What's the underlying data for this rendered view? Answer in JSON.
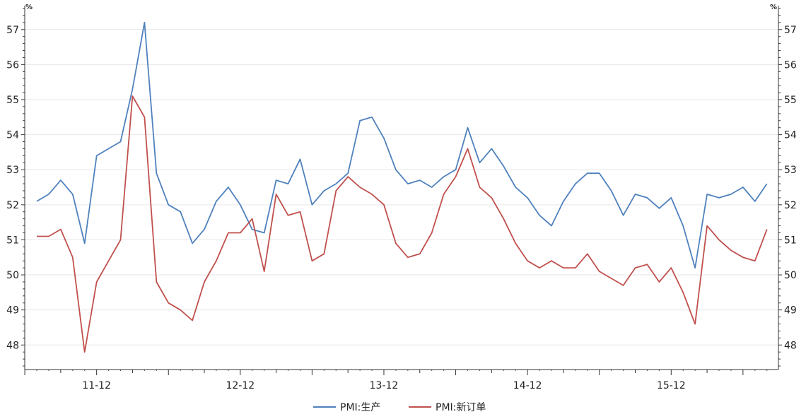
{
  "chart_data": {
    "type": "line",
    "y_unit_left": "%",
    "y_unit_right": "%",
    "ylim": [
      47.3,
      57.6
    ],
    "yticks": [
      48,
      49,
      50,
      51,
      52,
      53,
      54,
      55,
      56,
      57
    ],
    "x_labels": [
      "11-12",
      "12-12",
      "13-12",
      "14-12",
      "15-12"
    ],
    "x_label_indices": [
      5,
      17,
      29,
      41,
      53
    ],
    "grid": true,
    "legend_position": "bottom",
    "series": [
      {
        "name": "PMI:生产",
        "color": "#4f81bd",
        "values": [
          52.1,
          52.3,
          52.7,
          52.3,
          50.9,
          53.4,
          53.6,
          53.8,
          55.3,
          57.2,
          52.9,
          52.0,
          51.8,
          50.9,
          51.3,
          52.1,
          52.5,
          52.0,
          51.3,
          51.2,
          52.7,
          52.6,
          53.3,
          52.0,
          52.4,
          52.6,
          52.9,
          54.4,
          54.5,
          53.9,
          53.0,
          52.6,
          52.7,
          52.5,
          52.8,
          53.0,
          54.2,
          53.2,
          53.6,
          53.1,
          52.5,
          52.2,
          51.7,
          51.4,
          52.1,
          52.6,
          52.9,
          52.9,
          52.4,
          51.7,
          52.3,
          52.2,
          51.9,
          52.2,
          51.4,
          50.2,
          52.3,
          52.2,
          52.3,
          52.5,
          52.1,
          52.6
        ]
      },
      {
        "name": "PMI:新订单",
        "color": "#c0504d",
        "values": [
          51.1,
          51.1,
          51.3,
          50.5,
          47.8,
          49.8,
          50.4,
          51.0,
          55.1,
          54.5,
          49.8,
          49.2,
          49.0,
          48.7,
          49.8,
          50.4,
          51.2,
          51.2,
          51.6,
          50.1,
          52.3,
          51.7,
          51.8,
          50.4,
          50.6,
          52.4,
          52.8,
          52.5,
          52.3,
          52.0,
          50.9,
          50.5,
          50.6,
          51.2,
          52.3,
          52.8,
          53.6,
          52.5,
          52.2,
          51.6,
          50.9,
          50.4,
          50.2,
          50.4,
          50.2,
          50.2,
          50.6,
          50.1,
          49.9,
          49.7,
          50.2,
          50.3,
          49.8,
          50.2,
          49.5,
          48.6,
          51.4,
          51.0,
          50.7,
          50.5,
          50.4,
          51.3
        ]
      }
    ]
  }
}
